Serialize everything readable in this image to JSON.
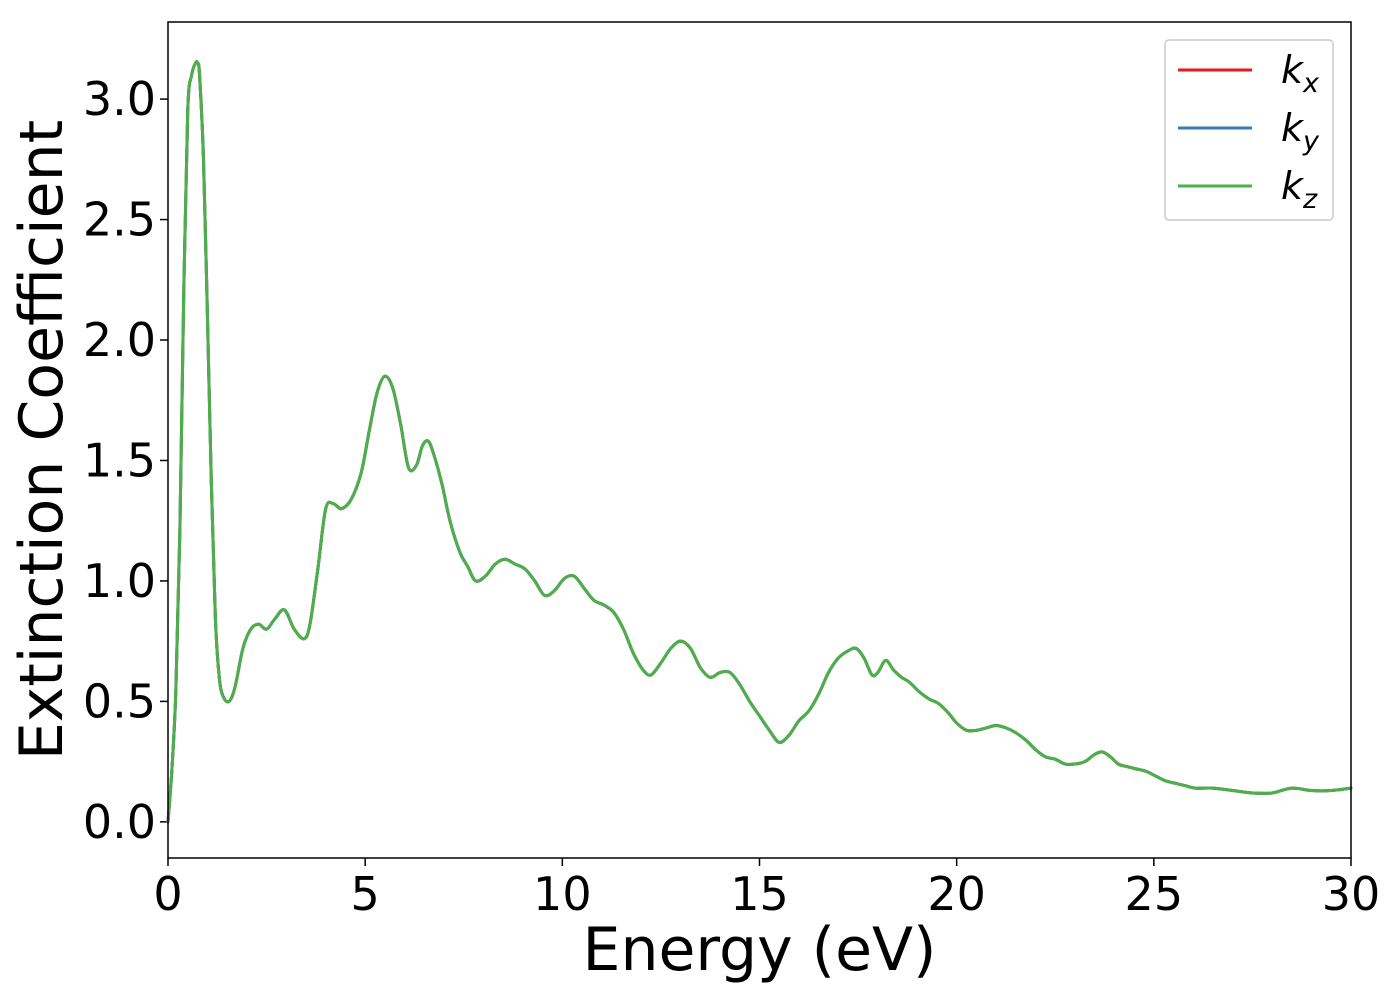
{
  "chart_data": {
    "type": "line",
    "title": "",
    "xlabel": "Energy (eV)",
    "ylabel": "Extinction Coefficient",
    "xlim": [
      0,
      30
    ],
    "ylim": [
      -0.15,
      3.32
    ],
    "xticks": [
      "0",
      "5",
      "10",
      "15",
      "20",
      "25",
      "30"
    ],
    "yticks": [
      "0.0",
      "0.5",
      "1.0",
      "1.5",
      "2.0",
      "2.5",
      "3.0"
    ],
    "grid": false,
    "legend_position": "top-right",
    "x": [
      0.0,
      0.1,
      0.2,
      0.3,
      0.4,
      0.5,
      0.6,
      0.7,
      0.75,
      0.8,
      0.9,
      1.0,
      1.1,
      1.2,
      1.3,
      1.4,
      1.55,
      1.7,
      1.9,
      2.1,
      2.3,
      2.5,
      2.7,
      2.95,
      3.2,
      3.45,
      3.6,
      3.8,
      4.0,
      4.2,
      4.4,
      4.65,
      4.9,
      5.1,
      5.3,
      5.5,
      5.7,
      5.9,
      6.1,
      6.3,
      6.45,
      6.6,
      6.75,
      6.95,
      7.15,
      7.4,
      7.6,
      7.8,
      8.05,
      8.3,
      8.55,
      8.8,
      9.05,
      9.3,
      9.55,
      9.8,
      10.05,
      10.3,
      10.55,
      10.8,
      11.05,
      11.3,
      11.55,
      11.8,
      12.05,
      12.25,
      12.5,
      12.75,
      13.0,
      13.25,
      13.5,
      13.75,
      14.0,
      14.25,
      14.5,
      14.75,
      15.0,
      15.25,
      15.5,
      15.75,
      16.0,
      16.25,
      16.5,
      16.75,
      17.0,
      17.25,
      17.45,
      17.65,
      17.85,
      18.0,
      18.2,
      18.4,
      18.6,
      18.8,
      19.05,
      19.3,
      19.55,
      19.8,
      20.0,
      20.25,
      20.5,
      20.75,
      21.0,
      21.25,
      21.5,
      21.75,
      22.0,
      22.25,
      22.5,
      22.75,
      23.0,
      23.25,
      23.5,
      23.7,
      23.9,
      24.1,
      24.3,
      24.55,
      24.8,
      25.05,
      25.3,
      25.55,
      25.8,
      26.05,
      26.5,
      27.0,
      27.5,
      28.0,
      28.5,
      29.0,
      29.5,
      30.0
    ],
    "series": [
      {
        "name": "k_x",
        "label_base": "k",
        "label_sub": "x",
        "color": "#e41a1c"
      },
      {
        "name": "k_y",
        "label_base": "k",
        "label_sub": "y",
        "color": "#377eb8"
      },
      {
        "name": "k_z",
        "label_base": "k",
        "label_sub": "z",
        "color": "#4daf4a"
      }
    ],
    "values": [
      0.0,
      0.22,
      0.55,
      1.2,
      2.2,
      2.95,
      3.1,
      3.15,
      3.15,
      3.1,
      2.75,
      2.1,
      1.4,
      0.85,
      0.6,
      0.52,
      0.5,
      0.56,
      0.72,
      0.8,
      0.82,
      0.8,
      0.84,
      0.88,
      0.8,
      0.76,
      0.82,
      1.05,
      1.3,
      1.32,
      1.3,
      1.34,
      1.45,
      1.62,
      1.78,
      1.85,
      1.8,
      1.65,
      1.47,
      1.48,
      1.56,
      1.58,
      1.52,
      1.4,
      1.25,
      1.12,
      1.06,
      1.0,
      1.02,
      1.07,
      1.09,
      1.07,
      1.05,
      1.0,
      0.94,
      0.96,
      1.01,
      1.02,
      0.97,
      0.92,
      0.9,
      0.87,
      0.8,
      0.7,
      0.63,
      0.61,
      0.66,
      0.72,
      0.75,
      0.72,
      0.64,
      0.6,
      0.62,
      0.62,
      0.57,
      0.5,
      0.44,
      0.38,
      0.33,
      0.36,
      0.42,
      0.46,
      0.53,
      0.62,
      0.68,
      0.71,
      0.72,
      0.68,
      0.61,
      0.62,
      0.67,
      0.63,
      0.6,
      0.58,
      0.54,
      0.51,
      0.49,
      0.45,
      0.41,
      0.38,
      0.38,
      0.39,
      0.4,
      0.39,
      0.37,
      0.34,
      0.3,
      0.27,
      0.26,
      0.24,
      0.24,
      0.25,
      0.28,
      0.29,
      0.27,
      0.24,
      0.23,
      0.22,
      0.21,
      0.19,
      0.17,
      0.16,
      0.15,
      0.14,
      0.14,
      0.13,
      0.12,
      0.12,
      0.14,
      0.13,
      0.13,
      0.14
    ]
  }
}
